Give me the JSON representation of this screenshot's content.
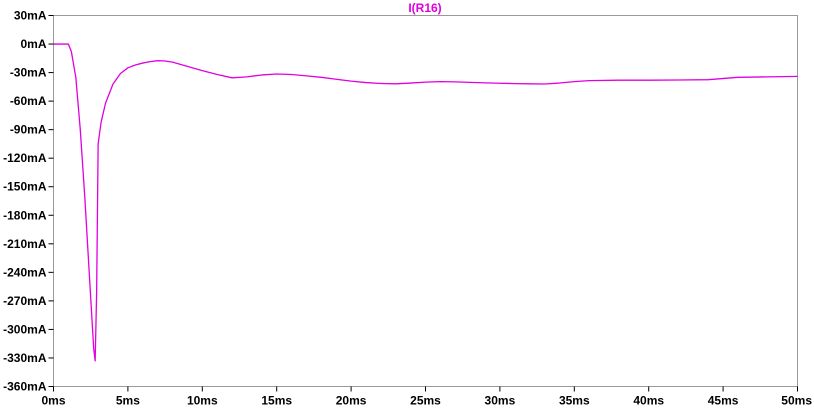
{
  "chart_data": {
    "type": "line",
    "title": "I(R16)",
    "x_unit": "ms",
    "y_unit": "mA",
    "xlim": [
      0,
      50
    ],
    "ylim": [
      -360,
      30
    ],
    "x_ticks": [
      0,
      5,
      10,
      15,
      20,
      25,
      30,
      35,
      40,
      45,
      50
    ],
    "x_tick_labels": [
      "0ms",
      "5ms",
      "10ms",
      "15ms",
      "20ms",
      "25ms",
      "30ms",
      "35ms",
      "40ms",
      "45ms",
      "50ms"
    ],
    "y_ticks": [
      30,
      0,
      -30,
      -60,
      -90,
      -120,
      -150,
      -180,
      -210,
      -240,
      -270,
      -300,
      -330,
      -360
    ],
    "y_tick_labels": [
      "30mA",
      "0mA",
      "-30mA",
      "-60mA",
      "-90mA",
      "-120mA",
      "-150mA",
      "-180mA",
      "-210mA",
      "-240mA",
      "-270mA",
      "-300mA",
      "-330mA",
      "-360mA"
    ],
    "grid": false,
    "series": [
      {
        "name": "I(R16)",
        "color": "#e000e0",
        "x": [
          0,
          1.0,
          1.2,
          1.5,
          1.8,
          2.1,
          2.4,
          2.7,
          2.8,
          2.9,
          3.0,
          3.2,
          3.5,
          4.0,
          4.5,
          5.0,
          5.5,
          6.0,
          6.5,
          7.0,
          7.5,
          8.0,
          9.0,
          10.0,
          11.0,
          12.0,
          13.0,
          14.0,
          15.0,
          16.0,
          17.0,
          18.0,
          19.0,
          20.0,
          21.0,
          22.0,
          23.0,
          24.0,
          25.0,
          26.0,
          27.0,
          28.0,
          29.0,
          30.0,
          31.0,
          32.0,
          33.0,
          34.0,
          35.0,
          36.0,
          38.0,
          40.0,
          42.0,
          44.0,
          46.0,
          48.0,
          50.0
        ],
        "values": [
          0,
          0,
          -8,
          -35,
          -90,
          -160,
          -240,
          -320,
          -333,
          -260,
          -105,
          -82,
          -62,
          -42,
          -31,
          -25,
          -22,
          -20,
          -18.5,
          -17.5,
          -17.8,
          -19,
          -23.5,
          -28,
          -32,
          -35.5,
          -34.5,
          -32.5,
          -31.5,
          -32,
          -33.5,
          -35,
          -37,
          -39,
          -40.5,
          -41.5,
          -41.8,
          -41,
          -40,
          -39.5,
          -39.8,
          -40.3,
          -40.8,
          -41.2,
          -41.6,
          -41.8,
          -42,
          -41,
          -39.5,
          -38.5,
          -38,
          -38,
          -37.8,
          -37.5,
          -35,
          -34.5,
          -34
        ]
      }
    ]
  }
}
